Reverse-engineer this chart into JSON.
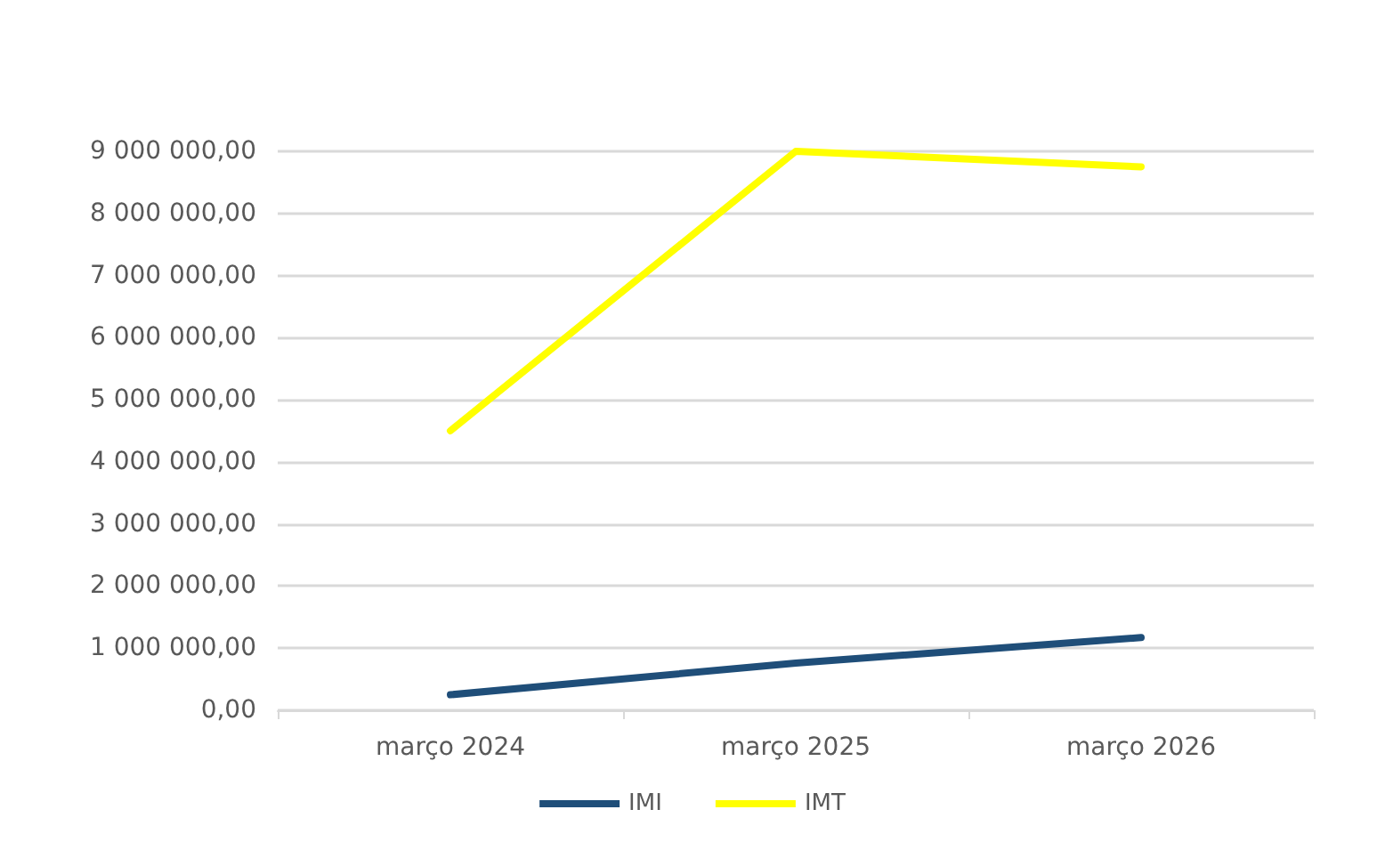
{
  "chart_data": {
    "type": "line",
    "categories": [
      "março 2024",
      "março 2025",
      "março 2026"
    ],
    "series": [
      {
        "name": "IMI",
        "color": "#1f4e79",
        "values": [
          250000,
          760000,
          1170000
        ]
      },
      {
        "name": "IMT",
        "color": "#ffff00",
        "values": [
          4500000,
          9000000,
          8750000
        ]
      }
    ],
    "ylim": [
      0,
      9000000
    ],
    "yticks": [
      {
        "value": 0,
        "label": "0,00"
      },
      {
        "value": 1000000,
        "label": "1 000 000,00"
      },
      {
        "value": 2000000,
        "label": "2 000 000,00"
      },
      {
        "value": 3000000,
        "label": "3 000 000,00"
      },
      {
        "value": 4000000,
        "label": "4 000 000,00"
      },
      {
        "value": 5000000,
        "label": "5 000 000,00"
      },
      {
        "value": 6000000,
        "label": "6 000 000,00"
      },
      {
        "value": 7000000,
        "label": "7 000 000,00"
      },
      {
        "value": 8000000,
        "label": "8 000 000,00"
      },
      {
        "value": 9000000,
        "label": "9 000 000,00"
      }
    ],
    "grid": "y",
    "legend": "bottom"
  }
}
